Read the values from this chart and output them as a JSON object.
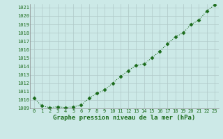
{
  "x": [
    0,
    1,
    2,
    3,
    4,
    5,
    6,
    7,
    8,
    9,
    10,
    11,
    12,
    13,
    14,
    15,
    16,
    17,
    18,
    19,
    20,
    21,
    22,
    23
  ],
  "y": [
    1010.2,
    1009.3,
    1009.1,
    1009.2,
    1009.1,
    1009.2,
    1009.4,
    1010.2,
    1010.8,
    1011.2,
    1012.0,
    1012.8,
    1013.5,
    1014.1,
    1014.3,
    1015.0,
    1015.8,
    1016.7,
    1017.5,
    1018.0,
    1019.0,
    1019.5,
    1020.6,
    1021.3
  ],
  "ylim_min": 1009.0,
  "ylim_max": 1021.4,
  "yticks": [
    1009,
    1010,
    1011,
    1012,
    1013,
    1014,
    1015,
    1016,
    1017,
    1018,
    1019,
    1020,
    1021
  ],
  "xticks": [
    0,
    1,
    2,
    3,
    4,
    5,
    6,
    7,
    8,
    9,
    10,
    11,
    12,
    13,
    14,
    15,
    16,
    17,
    18,
    19,
    20,
    21,
    22,
    23
  ],
  "xlabel": "Graphe pression niveau de la mer (hPa)",
  "line_color": "#1a6b1a",
  "marker": "D",
  "marker_size": 2.5,
  "bg_color": "#cce9e7",
  "grid_color": "#b0c8c8",
  "tick_color": "#1a6b1a",
  "label_color": "#1a6b1a",
  "tick_fontsize": 5.0,
  "xlabel_fontsize": 6.5
}
